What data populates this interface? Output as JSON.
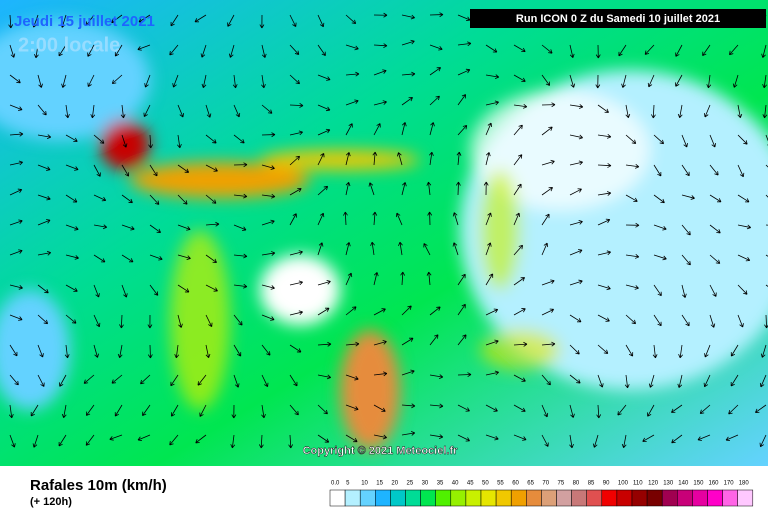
{
  "header": {
    "date": "Jeudi 15 juillet 2021",
    "time": "2:00 locale",
    "run": "Run ICON 0 Z du Samedi 10 juillet 2021"
  },
  "copyright": "Copyright © 2021 Meteociel.fr",
  "footer": {
    "title": "Rafales 10m (km/h)",
    "lead": "(+ 120h)"
  },
  "legend": {
    "labels": [
      "0.0",
      "5",
      "10",
      "15",
      "20",
      "25",
      "30",
      "35",
      "40",
      "45",
      "50",
      "55",
      "60",
      "65",
      "70",
      "75",
      "80",
      "85",
      "90",
      "100",
      "110",
      "120",
      "130",
      "140",
      "150",
      "160",
      "170",
      "180"
    ],
    "colors": [
      "#ffffff",
      "#b4f0ff",
      "#64d2ff",
      "#1eb4ff",
      "#00c8c8",
      "#00dc96",
      "#00e650",
      "#50f000",
      "#96f000",
      "#c8f000",
      "#e6e600",
      "#f0c800",
      "#f0a000",
      "#e68c3c",
      "#dca078",
      "#d2a0a0",
      "#c87878",
      "#e05050",
      "#f00000",
      "#c80000",
      "#960000",
      "#780000",
      "#a00050",
      "#c80078",
      "#e600a0",
      "#ff00c8",
      "#ff64e6",
      "#ffc8ff"
    ]
  }
}
